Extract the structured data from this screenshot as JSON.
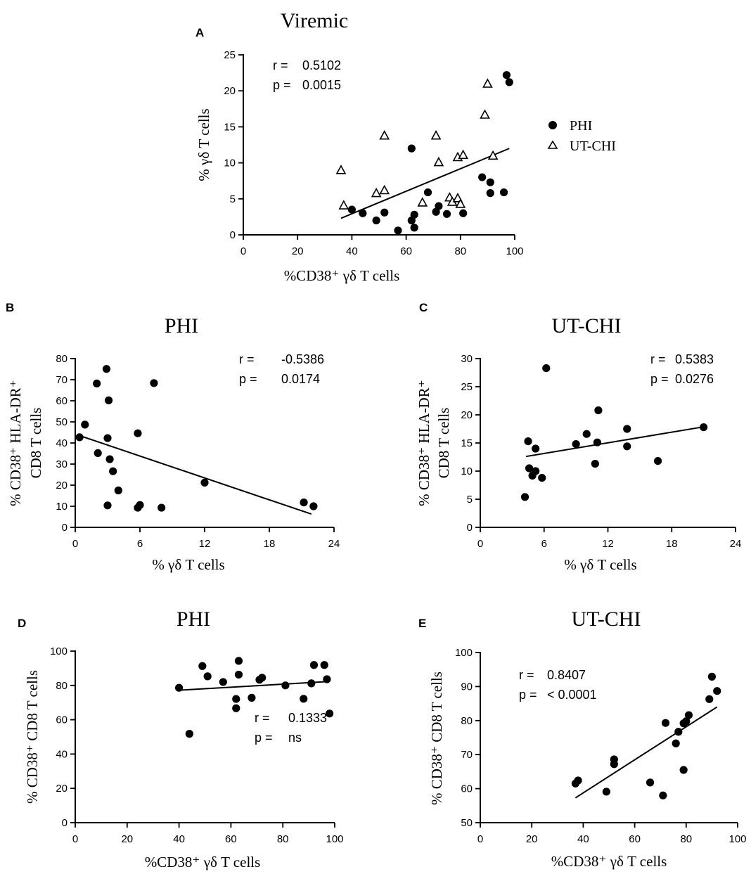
{
  "legend": {
    "items": [
      {
        "label": "PHI",
        "marker": "circle"
      },
      {
        "label": "UT-CHI",
        "marker": "triangle"
      }
    ]
  },
  "chart_data": [
    {
      "id": "A",
      "panel_letter": "A",
      "title": "Viremic",
      "type": "scatter",
      "xlabel": "%CD38⁺ γδ T cells",
      "ylabel": [
        "% γδ T cells"
      ],
      "xlim": [
        0,
        100
      ],
      "ylim": [
        0,
        25
      ],
      "xticks": [
        0,
        20,
        40,
        60,
        80,
        100
      ],
      "yticks": [
        0,
        5,
        10,
        15,
        20,
        25
      ],
      "stats": {
        "r_label": "r =",
        "r_value": "0.5102",
        "p_label": "p =",
        "p_value": "0.0015"
      },
      "fit": [
        [
          36,
          2.3
        ],
        [
          98,
          12.0
        ]
      ],
      "series": [
        {
          "name": "PHI",
          "marker": "circle",
          "points": [
            [
              40,
              3.5
            ],
            [
              44,
              3.0
            ],
            [
              49,
              2.0
            ],
            [
              52,
              3.1
            ],
            [
              57,
              0.6
            ],
            [
              62,
              12.0
            ],
            [
              62,
              2.0
            ],
            [
              63,
              1.0
            ],
            [
              63,
              2.8
            ],
            [
              68,
              5.9
            ],
            [
              71,
              3.2
            ],
            [
              72,
              4.0
            ],
            [
              75,
              2.9
            ],
            [
              81,
              3.0
            ],
            [
              88,
              8.0
            ],
            [
              91,
              7.3
            ],
            [
              91,
              5.8
            ],
            [
              96,
              5.9
            ],
            [
              97,
              22.2
            ],
            [
              98,
              21.2
            ]
          ]
        },
        {
          "name": "UT-CHI",
          "marker": "triangle",
          "points": [
            [
              36,
              9.0
            ],
            [
              37,
              4.1
            ],
            [
              49,
              5.8
            ],
            [
              52,
              13.8
            ],
            [
              52,
              6.2
            ],
            [
              66,
              4.5
            ],
            [
              71,
              13.8
            ],
            [
              72,
              10.1
            ],
            [
              76,
              5.2
            ],
            [
              77,
              4.6
            ],
            [
              79,
              5.1
            ],
            [
              79,
              10.8
            ],
            [
              80,
              4.3
            ],
            [
              81,
              11.1
            ],
            [
              89,
              16.7
            ],
            [
              90,
              21.0
            ],
            [
              92,
              11.0
            ]
          ]
        }
      ]
    },
    {
      "id": "B",
      "panel_letter": "B",
      "title": "PHI",
      "type": "scatter",
      "xlabel": "% γδ T cells",
      "ylabel": [
        "% CD38⁺ HLA-DR⁺",
        "CD8 T cells"
      ],
      "xlim": [
        0,
        24
      ],
      "ylim": [
        0,
        80
      ],
      "xticks": [
        0,
        6,
        12,
        18,
        24
      ],
      "yticks": [
        0,
        10,
        20,
        30,
        40,
        50,
        60,
        70,
        80
      ],
      "stats": {
        "r_label": "r =",
        "r_value": "-0.5386",
        "p_label": "p =",
        "p_value": "0.0174"
      },
      "fit": [
        [
          0.4,
          43.5
        ],
        [
          21.9,
          6.3
        ]
      ],
      "series": [
        {
          "name": "PHI",
          "marker": "circle",
          "points": [
            [
              0.4,
              42.7
            ],
            [
              0.9,
              48.7
            ],
            [
              2.0,
              68.2
            ],
            [
              2.1,
              35.2
            ],
            [
              2.9,
              75.1
            ],
            [
              3.0,
              42.3
            ],
            [
              3.0,
              10.4
            ],
            [
              3.1,
              60.2
            ],
            [
              3.2,
              32.3
            ],
            [
              3.5,
              26.6
            ],
            [
              4.0,
              17.5
            ],
            [
              5.8,
              44.6
            ],
            [
              5.8,
              9.3
            ],
            [
              6.0,
              10.6
            ],
            [
              7.3,
              68.4
            ],
            [
              8.0,
              9.3
            ],
            [
              12.0,
              21.2
            ],
            [
              21.2,
              11.8
            ],
            [
              22.1,
              10.0
            ]
          ]
        }
      ]
    },
    {
      "id": "C",
      "panel_letter": "C",
      "title": "UT-CHI",
      "type": "scatter",
      "xlabel": "% γδ T cells",
      "ylabel": [
        "% CD38⁺ HLA-DR⁺",
        "CD8 T cells"
      ],
      "xlim": [
        0,
        24
      ],
      "ylim": [
        0,
        30
      ],
      "xticks": [
        0,
        6,
        12,
        18,
        24
      ],
      "yticks": [
        0,
        5,
        10,
        15,
        20,
        25,
        30
      ],
      "stats": {
        "r_label": "r =",
        "r_value": "0.5383",
        "p_label": "p =",
        "p_value": "0.0276"
      },
      "fit": [
        [
          4.3,
          12.6
        ],
        [
          21.1,
          17.9
        ]
      ],
      "series": [
        {
          "name": "UT-CHI",
          "marker": "circle",
          "points": [
            [
              4.2,
              5.4
            ],
            [
              4.5,
              15.3
            ],
            [
              4.6,
              10.5
            ],
            [
              4.9,
              9.2
            ],
            [
              5.2,
              14.0
            ],
            [
              5.2,
              10.0
            ],
            [
              5.8,
              8.8
            ],
            [
              6.2,
              28.3
            ],
            [
              9.0,
              14.8
            ],
            [
              10.0,
              16.6
            ],
            [
              10.8,
              11.3
            ],
            [
              11.0,
              15.1
            ],
            [
              11.1,
              20.8
            ],
            [
              13.8,
              17.5
            ],
            [
              13.8,
              14.4
            ],
            [
              16.7,
              11.8
            ],
            [
              21.0,
              17.8
            ]
          ]
        }
      ]
    },
    {
      "id": "D",
      "panel_letter": "D",
      "title": "PHI",
      "type": "scatter",
      "xlabel": "%CD38⁺ γδ T cells",
      "ylabel": [
        "% CD38⁺ CD8 T cells"
      ],
      "xlim": [
        0,
        100
      ],
      "ylim": [
        0,
        100
      ],
      "xticks": [
        0,
        20,
        40,
        60,
        80,
        100
      ],
      "yticks": [
        0,
        20,
        40,
        60,
        80,
        100
      ],
      "stats": {
        "r_label": "r =",
        "r_value": "0.1333",
        "p_label": "p =",
        "p_value": "ns"
      },
      "fit": [
        [
          40,
          77.2
        ],
        [
          97,
          82.2
        ]
      ],
      "series": [
        {
          "name": "PHI",
          "marker": "circle",
          "points": [
            [
              40,
              78.6
            ],
            [
              44,
              51.8
            ],
            [
              49,
              91.3
            ],
            [
              51,
              85.3
            ],
            [
              57,
              82.0
            ],
            [
              62,
              66.7
            ],
            [
              62,
              72.1
            ],
            [
              63,
              94.3
            ],
            [
              63,
              86.3
            ],
            [
              68,
              72.8
            ],
            [
              71,
              83.3
            ],
            [
              72,
              84.5
            ],
            [
              81,
              80.0
            ],
            [
              88,
              72.2
            ],
            [
              91,
              81.2
            ],
            [
              92,
              91.9
            ],
            [
              96,
              91.9
            ],
            [
              97,
              83.6
            ],
            [
              98,
              63.6
            ]
          ]
        }
      ]
    },
    {
      "id": "E",
      "panel_letter": "E",
      "title": "UT-CHI",
      "type": "scatter",
      "xlabel": "%CD38⁺ γδ T cells",
      "ylabel": [
        "% CD38⁺ CD8 T cells"
      ],
      "xlim": [
        0,
        100
      ],
      "ylim": [
        50,
        100
      ],
      "xticks": [
        0,
        20,
        40,
        60,
        80,
        100
      ],
      "yticks": [
        50,
        60,
        70,
        80,
        90,
        100
      ],
      "stats": {
        "r_label": "r =",
        "r_value": "0.8407",
        "p_label": "p =",
        "p_value": "< 0.0001"
      },
      "fit": [
        [
          37,
          57.3
        ],
        [
          92,
          84.0
        ]
      ],
      "series": [
        {
          "name": "UT-CHI",
          "marker": "circle",
          "points": [
            [
              37,
              61.5
            ],
            [
              38,
              62.4
            ],
            [
              49,
              59.1
            ],
            [
              52,
              67.2
            ],
            [
              52,
              68.6
            ],
            [
              66,
              61.8
            ],
            [
              71,
              58.0
            ],
            [
              72,
              79.3
            ],
            [
              76,
              73.3
            ],
            [
              77,
              76.7
            ],
            [
              79,
              65.5
            ],
            [
              79,
              79.2
            ],
            [
              80,
              79.8
            ],
            [
              81,
              81.6
            ],
            [
              89,
              86.3
            ],
            [
              90,
              92.9
            ],
            [
              92,
              88.7
            ]
          ]
        }
      ]
    }
  ]
}
